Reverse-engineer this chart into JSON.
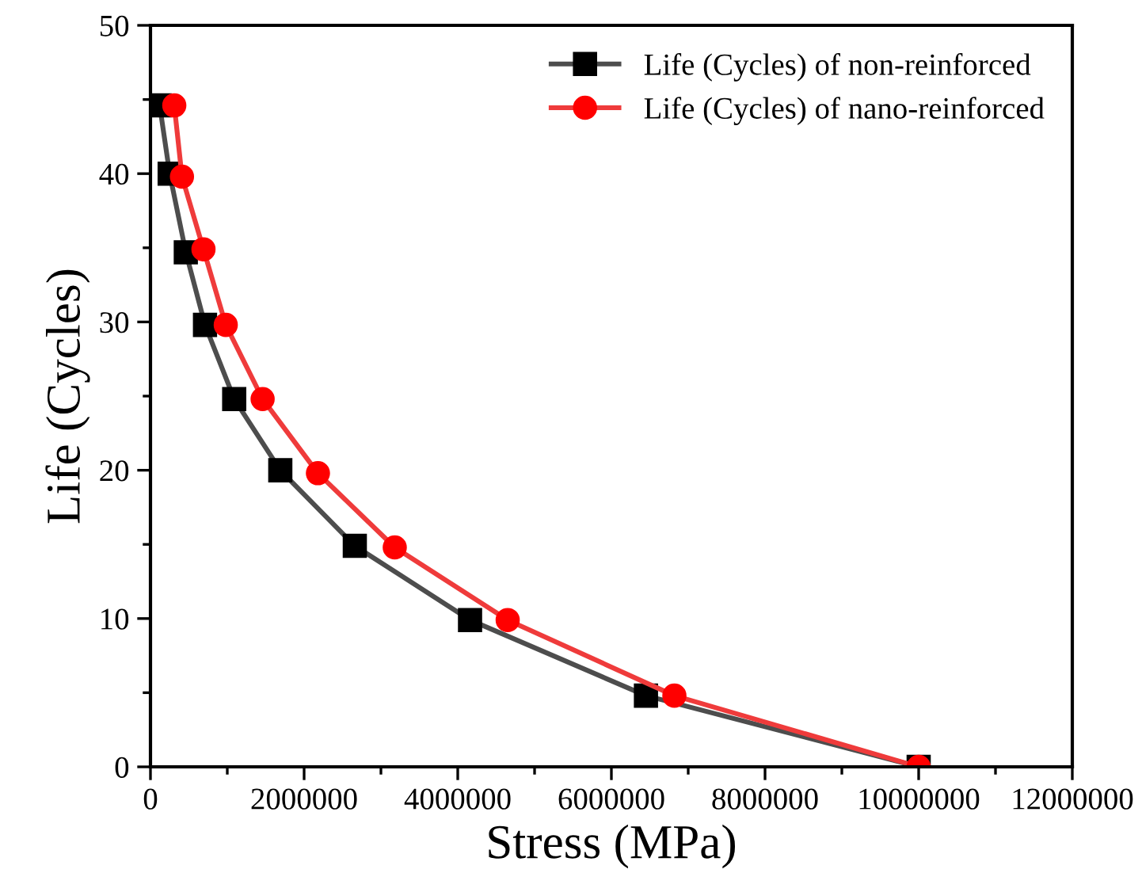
{
  "chart_data": {
    "type": "line",
    "xlabel": "Stress (MPa)",
    "ylabel": "Life (Cycles)",
    "xlim": [
      0,
      12000000
    ],
    "xticks": [
      0,
      2000000,
      4000000,
      6000000,
      8000000,
      10000000,
      12000000
    ],
    "ylim": [
      0,
      50
    ],
    "yticks": [
      0,
      10,
      20,
      30,
      40,
      50
    ],
    "grid": false,
    "legend": "top right",
    "series": [
      {
        "name": "Life (Cycles) of non-reinforced",
        "color": "#4d4d4d",
        "marker": "square",
        "x": [
          120000,
          250000,
          460000,
          710000,
          1090000,
          1690000,
          2660000,
          4160000,
          6450000,
          10000000
        ],
        "values": [
          44.6,
          40,
          34.7,
          29.8,
          24.8,
          20,
          14.9,
          9.9,
          4.8,
          0
        ]
      },
      {
        "name": "Life (Cycles) of nano-reinforced",
        "color": "#ef3b3b",
        "marker": "circle",
        "x": [
          310000,
          410000,
          690000,
          980000,
          1460000,
          2180000,
          3180000,
          4650000,
          6820000,
          10000000
        ],
        "values": [
          44.6,
          39.8,
          34.9,
          29.8,
          24.8,
          19.8,
          14.8,
          9.9,
          4.8,
          0
        ]
      }
    ]
  }
}
